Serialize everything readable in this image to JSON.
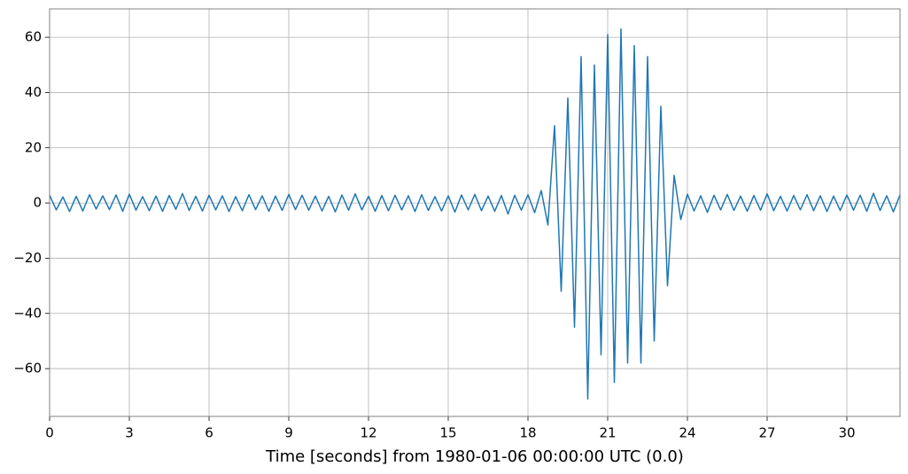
{
  "chart_data": {
    "type": "line",
    "xlabel": "Time [seconds] from 1980-01-06 00:00:00 UTC (0.0)",
    "color": "#1f77b4",
    "grid": true,
    "xlim": [
      0,
      32
    ],
    "ylim": [
      -77.3,
      70.3
    ],
    "xticks": [
      0,
      3,
      6,
      9,
      12,
      15,
      18,
      21,
      24,
      27,
      30
    ],
    "yticks": [
      {
        "value": -60,
        "label": "−60"
      },
      {
        "value": -40,
        "label": "−40"
      },
      {
        "value": -20,
        "label": "−20"
      },
      0,
      20,
      40,
      60
    ],
    "x": [
      0,
      0.25,
      0.5,
      0.75,
      1,
      1.25,
      1.5,
      1.75,
      2,
      2.25,
      2.5,
      2.75,
      3,
      3.25,
      3.5,
      3.75,
      4,
      4.25,
      4.5,
      4.75,
      5,
      5.25,
      5.5,
      5.75,
      6,
      6.25,
      6.5,
      6.75,
      7,
      7.25,
      7.5,
      7.75,
      8,
      8.25,
      8.5,
      8.75,
      9,
      9.25,
      9.5,
      9.75,
      10,
      10.25,
      10.5,
      10.75,
      11,
      11.25,
      11.5,
      11.75,
      12,
      12.25,
      12.5,
      12.75,
      13,
      13.25,
      13.5,
      13.75,
      14,
      14.25,
      14.5,
      14.75,
      15,
      15.25,
      15.5,
      15.75,
      16,
      16.25,
      16.5,
      16.75,
      17,
      17.25,
      17.5,
      17.75,
      18,
      18.25,
      18.5,
      18.75,
      19,
      19.25,
      19.5,
      19.75,
      20,
      20.25,
      20.5,
      20.75,
      21,
      21.25,
      21.5,
      21.75,
      22,
      22.25,
      22.5,
      22.75,
      23,
      23.25,
      23.5,
      23.75,
      24,
      24.25,
      24.5,
      24.75,
      25,
      25.25,
      25.5,
      25.75,
      26,
      26.25,
      26.5,
      26.75,
      27,
      27.25,
      27.5,
      27.75,
      28,
      28.25,
      28.5,
      28.75,
      29,
      29.25,
      29.5,
      29.75,
      30,
      30.25,
      30.5,
      30.75,
      31,
      31.25,
      31.5,
      31.75,
      32
    ],
    "values": [
      2.8,
      -2.5,
      2.2,
      -3.1,
      2.4,
      -2.9,
      3.0,
      -2.2,
      2.6,
      -2.4,
      2.9,
      -3.0,
      3.2,
      -2.6,
      2.3,
      -2.8,
      2.5,
      -3.0,
      2.7,
      -2.3,
      3.4,
      -2.7,
      2.4,
      -2.9,
      2.8,
      -2.5,
      2.6,
      -3.1,
      2.3,
      -2.8,
      3.0,
      -2.4,
      2.6,
      -3.0,
      2.5,
      -2.7,
      3.1,
      -2.4,
      2.8,
      -2.6,
      2.5,
      -2.9,
      2.4,
      -3.2,
      2.9,
      -2.6,
      3.3,
      -2.5,
      2.4,
      -3.0,
      2.7,
      -2.8,
      2.8,
      -2.5,
      2.6,
      -3.1,
      3.0,
      -2.7,
      2.3,
      -2.9,
      2.6,
      -3.3,
      2.9,
      -2.5,
      3.1,
      -2.8,
      2.5,
      -3.0,
      2.7,
      -4.0,
      2.8,
      -2.6,
      3.0,
      -3.5,
      4.5,
      -8.0,
      28,
      -32,
      38,
      -45,
      53,
      -71,
      50,
      -55,
      61,
      -65,
      63,
      -58,
      57,
      -58,
      53,
      -50,
      35,
      -30,
      10,
      -6,
      3.2,
      -2.9,
      2.6,
      -3.4,
      2.8,
      -2.5,
      3.1,
      -2.7,
      2.5,
      -3.0,
      2.7,
      -2.6,
      3.3,
      -2.8,
      2.4,
      -2.9,
      2.7,
      -2.5,
      3.0,
      -2.8,
      2.6,
      -3.1,
      2.5,
      -2.7,
      2.9,
      -2.6,
      2.8,
      -3.0,
      3.5,
      -2.7,
      2.6,
      -3.2,
      2.9
    ]
  }
}
